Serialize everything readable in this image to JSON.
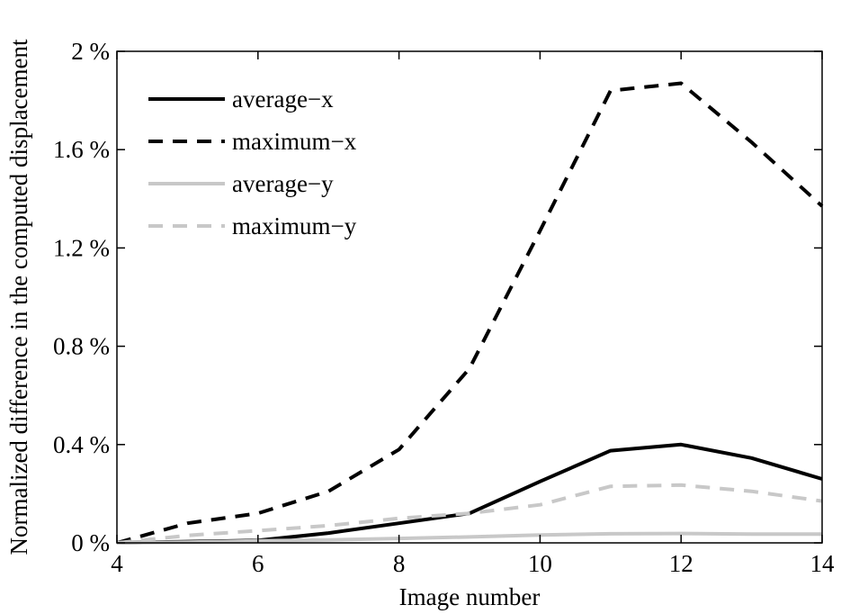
{
  "chart_data": {
    "type": "line",
    "title": "",
    "xlabel": "Image number",
    "ylabel": "Normalized difference in the computed displacement",
    "xlim": [
      4,
      14
    ],
    "ylim": [
      0,
      2
    ],
    "x_ticks": [
      4,
      6,
      8,
      10,
      12,
      14
    ],
    "y_ticks": [
      0,
      0.4,
      0.8,
      1.2,
      1.6,
      2
    ],
    "y_tick_labels": [
      "0 %",
      "0.4 %",
      "0.8 %",
      "1.2 %",
      "1.6 %",
      "2 %"
    ],
    "grid": false,
    "legend_position": "top-left",
    "x": [
      4,
      5,
      6,
      7,
      8,
      9,
      10,
      11,
      12,
      13,
      14
    ],
    "series": [
      {
        "name": "average−x",
        "values": [
          0,
          0.005,
          0.01,
          0.04,
          0.08,
          0.12,
          0.25,
          0.375,
          0.4,
          0.345,
          0.26
        ],
        "color": "#000000",
        "dash": "solid"
      },
      {
        "name": "maximum−x",
        "values": [
          0,
          0.08,
          0.12,
          0.21,
          0.38,
          0.71,
          1.27,
          1.84,
          1.87,
          1.63,
          1.37
        ],
        "color": "#000000",
        "dash": "dashed"
      },
      {
        "name": "average−y",
        "values": [
          0,
          0.003,
          0.008,
          0.012,
          0.018,
          0.024,
          0.032,
          0.037,
          0.038,
          0.036,
          0.036
        ],
        "color": "#c8c8c8",
        "dash": "solid"
      },
      {
        "name": "maximum−y",
        "values": [
          0,
          0.03,
          0.05,
          0.07,
          0.1,
          0.12,
          0.155,
          0.23,
          0.235,
          0.21,
          0.17
        ],
        "color": "#c8c8c8",
        "dash": "dashed"
      }
    ]
  }
}
